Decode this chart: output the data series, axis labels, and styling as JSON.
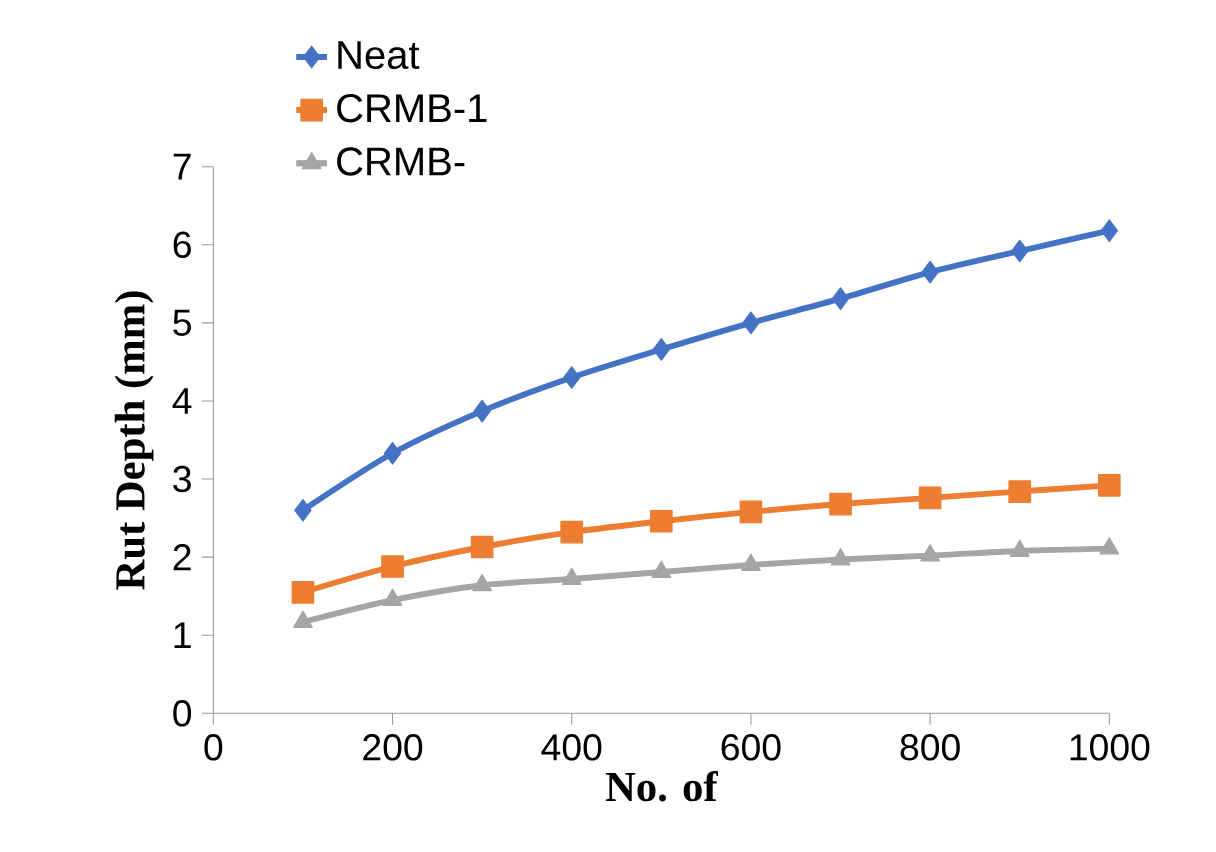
{
  "chart_data": {
    "type": "line",
    "xlabel": "No. of",
    "ylabel": "Rut Depth (mm)",
    "x": [
      100,
      200,
      300,
      400,
      500,
      600,
      700,
      800,
      900,
      1000
    ],
    "series": [
      {
        "name": "Neat",
        "color": "#4472c4",
        "marker": "diamond",
        "values": [
          2.6,
          3.33,
          3.87,
          4.3,
          4.66,
          5.0,
          5.31,
          5.65,
          5.92,
          6.18
        ]
      },
      {
        "name": "CRMB-1",
        "color": "#ed7d31",
        "marker": "square",
        "values": [
          1.55,
          1.88,
          2.13,
          2.32,
          2.46,
          2.58,
          2.68,
          2.76,
          2.84,
          2.92
        ]
      },
      {
        "name": "CRMB-",
        "color": "#a5a5a5",
        "marker": "triangle",
        "values": [
          1.17,
          1.45,
          1.64,
          1.72,
          1.81,
          1.9,
          1.97,
          2.02,
          2.08,
          2.11
        ]
      }
    ],
    "xlim": [
      0,
      1000
    ],
    "xticks": [
      0,
      200,
      400,
      600,
      800,
      1000
    ],
    "ylim": [
      0,
      7
    ],
    "yticks": [
      0,
      1,
      2,
      3,
      4,
      5,
      6,
      7
    ],
    "grid": false,
    "legend": "top left",
    "line_style": "solid"
  }
}
